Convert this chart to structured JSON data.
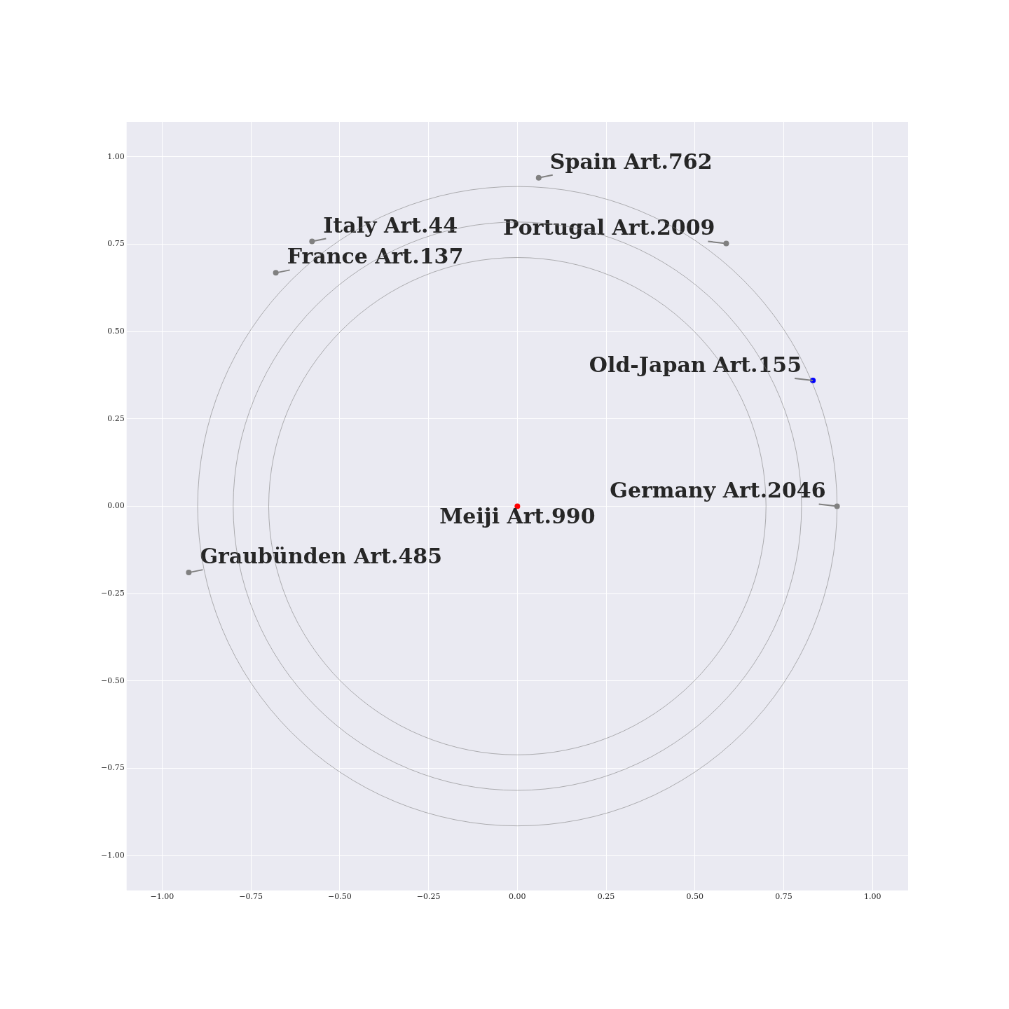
{
  "chart_data": {
    "type": "scatter",
    "marker": "circle",
    "grid": true,
    "legend": false,
    "xlim": [
      -1.1,
      1.1
    ],
    "ylim": [
      -1.1,
      1.1
    ],
    "xticks": [
      {
        "value": -1,
        "label": "−1.00"
      },
      {
        "value": -0.75,
        "label": "−0.75"
      },
      {
        "value": -0.5,
        "label": "−0.50"
      },
      {
        "value": -0.25,
        "label": "−0.25"
      },
      {
        "value": 0,
        "label": "0.00"
      },
      {
        "value": 0.25,
        "label": "0.25"
      },
      {
        "value": 0.5,
        "label": "0.50"
      },
      {
        "value": 0.75,
        "label": "0.75"
      },
      {
        "value": 1,
        "label": "1.00"
      }
    ],
    "yticks": [
      {
        "value": -1,
        "label": "−1.00"
      },
      {
        "value": -0.75,
        "label": "−0.75"
      },
      {
        "value": -0.5,
        "label": "−0.50"
      },
      {
        "value": -0.25,
        "label": "−0.25"
      },
      {
        "value": 0,
        "label": "0.00"
      },
      {
        "value": 0.25,
        "label": "0.25"
      },
      {
        "value": 0.5,
        "label": "0.50"
      },
      {
        "value": 0.75,
        "label": "0.75"
      },
      {
        "value": 1,
        "label": "1.00"
      }
    ],
    "series": [
      {
        "x": [
          0.06,
          -0.578,
          -0.68,
          0.588,
          0.832,
          0.9,
          0,
          -0.925
        ],
        "values": [
          0.94,
          0.758,
          0.668,
          0.752,
          0.36,
          0,
          0,
          -0.19
        ],
        "colors": [
          "#808080",
          "#808080",
          "#808080",
          "#808080",
          "#0000ff",
          "#808080",
          "#ff0000",
          "#808080"
        ]
      }
    ],
    "annotations": [
      {
        "text": "Spain Art.762",
        "x": 0.06,
        "y": 0.94
      },
      {
        "text": "Italy Art.44",
        "x": -0.578,
        "y": 0.758
      },
      {
        "text": "France Art.137",
        "x": -0.68,
        "y": 0.668
      },
      {
        "text": "Portugal Art.2009",
        "x": 0.588,
        "y": 0.752
      },
      {
        "text": "Old-Japan Art.155",
        "x": 0.832,
        "y": 0.36
      },
      {
        "text": "Germany Art.2046",
        "x": 0.9,
        "y": 0
      },
      {
        "text": "Meiji Art.990",
        "x": 0,
        "y": 0
      },
      {
        "text": "Graubünden Art.485",
        "x": -0.925,
        "y": -0.19
      }
    ]
  }
}
